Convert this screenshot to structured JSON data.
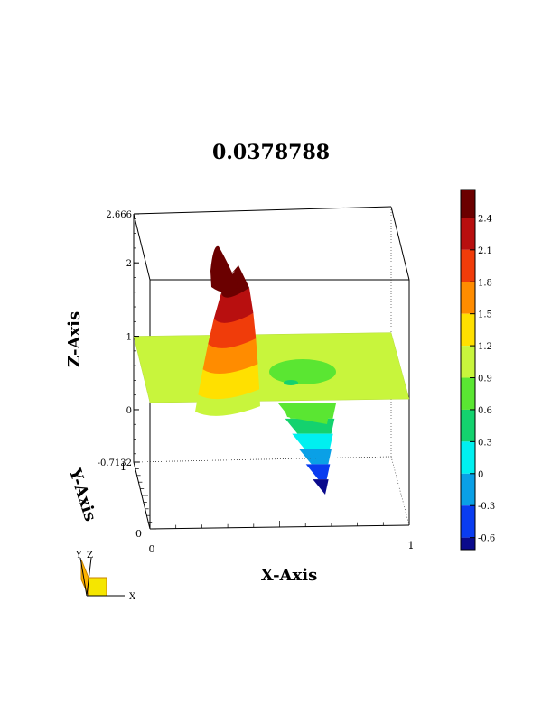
{
  "chart_data": {
    "type": "surface3d",
    "title": "0.0378788",
    "xlabel": "X-Axis",
    "ylabel": "Y-Axis",
    "zlabel": "Z-Axis",
    "xlim": [
      0,
      1
    ],
    "ylim": [
      0,
      1
    ],
    "zlim": [
      -0.7132,
      2.666
    ],
    "x_ticks": [
      "0",
      "1"
    ],
    "y_ticks": [
      "0",
      "1"
    ],
    "z_ticks": [
      "-0.7132",
      "0",
      "1",
      "2",
      "2.666"
    ],
    "colorbar": {
      "ticks": [
        "2.4",
        "2.1",
        "1.8",
        "1.5",
        "1.2",
        "0.9",
        "0.6",
        "0.3",
        "0",
        "-0.3",
        "-0.6"
      ],
      "levels": [
        {
          "from": 2.4,
          "to": 2.666,
          "color": "#6b0000"
        },
        {
          "from": 2.1,
          "to": 2.4,
          "color": "#b80f0f"
        },
        {
          "from": 1.8,
          "to": 2.1,
          "color": "#f03c0a"
        },
        {
          "from": 1.5,
          "to": 1.8,
          "color": "#ff8c00"
        },
        {
          "from": 1.2,
          "to": 1.5,
          "color": "#ffe000"
        },
        {
          "from": 0.9,
          "to": 1.2,
          "color": "#c8f53c"
        },
        {
          "from": 0.6,
          "to": 0.9,
          "color": "#5ae632"
        },
        {
          "from": 0.3,
          "to": 0.6,
          "color": "#14d26e"
        },
        {
          "from": 0,
          "to": 0.3,
          "color": "#00f0f0"
        },
        {
          "from": -0.3,
          "to": 0,
          "color": "#0aa0e6"
        },
        {
          "from": -0.6,
          "to": -0.3,
          "color": "#0a3cf0"
        },
        {
          "from": -0.7132,
          "to": -0.6,
          "color": "#0a0a8c"
        }
      ]
    },
    "plane_value": 1.0,
    "plane_color": "#c8f53c",
    "peak": {
      "x": 0.3,
      "z_max": 2.666
    },
    "trough": {
      "x": 0.7,
      "z_min": -0.7132
    }
  },
  "orientation_widget": {
    "labels": [
      "Y",
      "Z",
      "X"
    ]
  }
}
